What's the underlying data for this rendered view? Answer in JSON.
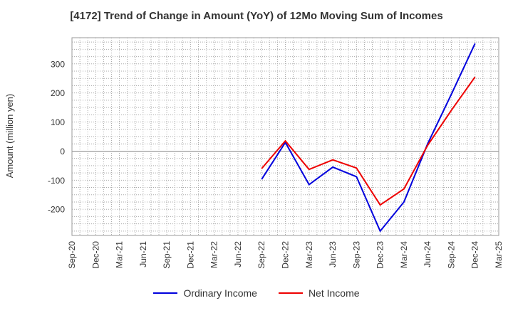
{
  "chart_data": {
    "type": "line",
    "title": "[4172]  Trend of Change in Amount (YoY) of 12Mo Moving Sum of Incomes",
    "xlabel": "",
    "ylabel": "Amount (million yen)",
    "ylim": [
      -290,
      390
    ],
    "yticks": [
      300,
      200,
      100,
      0,
      -100,
      -200
    ],
    "categories": [
      "Sep-20",
      "Dec-20",
      "Mar-21",
      "Jun-21",
      "Sep-21",
      "Dec-21",
      "Mar-22",
      "Jun-22",
      "Sep-22",
      "Dec-22",
      "Mar-23",
      "Jun-23",
      "Sep-23",
      "Dec-23",
      "Mar-24",
      "Jun-24",
      "Sep-24",
      "Dec-24",
      "Mar-25"
    ],
    "grid": true,
    "legend_position": "bottom",
    "series": [
      {
        "name": "Ordinary Income",
        "color": "#0000dd",
        "values": [
          null,
          null,
          null,
          null,
          null,
          null,
          null,
          null,
          -97,
          30,
          -115,
          -55,
          -88,
          -275,
          -175,
          25,
          195,
          370,
          null
        ]
      },
      {
        "name": "Net Income",
        "color": "#ee0000",
        "values": [
          null,
          null,
          null,
          null,
          null,
          null,
          null,
          null,
          -60,
          35,
          -63,
          -30,
          -58,
          -185,
          -130,
          20,
          140,
          255,
          null
        ]
      }
    ]
  }
}
